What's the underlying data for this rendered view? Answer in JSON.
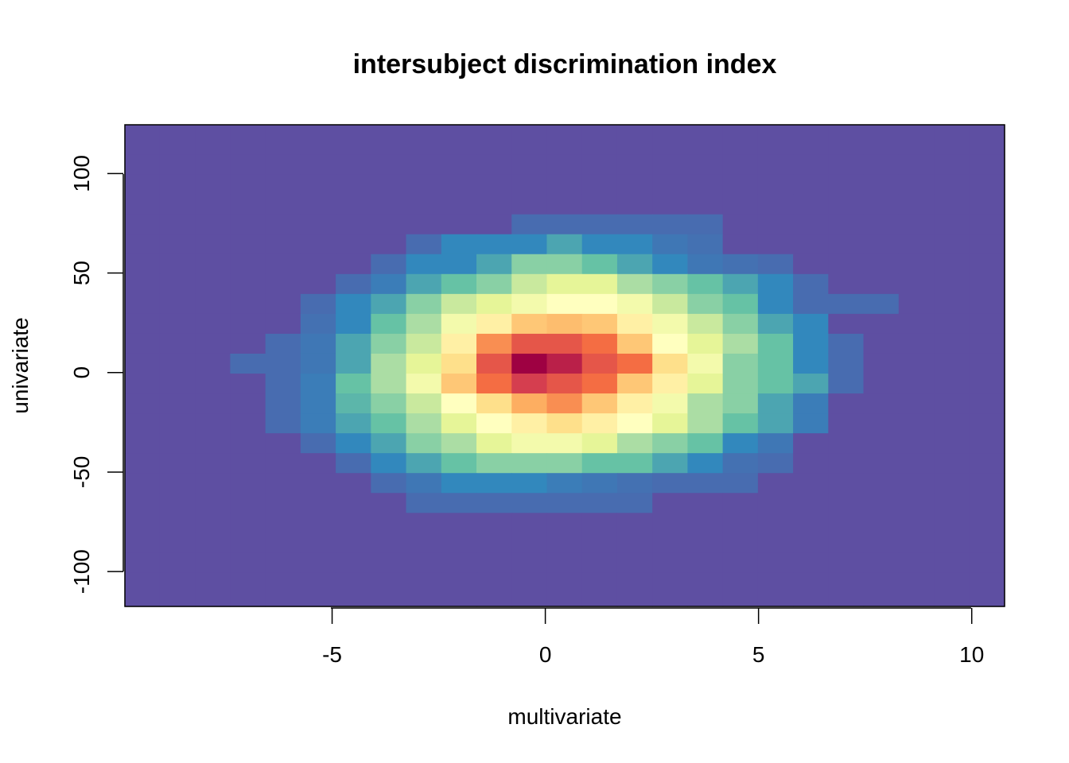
{
  "chart_data": {
    "type": "heatmap",
    "title": "intersubject discrimination index",
    "xlabel": "multivariate",
    "ylabel": "univariate",
    "xlim": [
      -9.86,
      10.77
    ],
    "ylim": [
      -117.5,
      124.5
    ],
    "xticks": [
      -5,
      0,
      5,
      10
    ],
    "xtick_labels": [
      "-5",
      "0",
      "5",
      "10"
    ],
    "yticks": [
      -100,
      -50,
      0,
      50,
      100
    ],
    "ytick_labels": [
      "-100",
      "-50",
      "0",
      "50",
      "100"
    ],
    "grid": false,
    "legend": "none",
    "x_centers": [
      -9.45,
      -8.63,
      -7.8,
      -6.98,
      -6.15,
      -5.33,
      -4.5,
      -3.68,
      -2.85,
      -2.03,
      -1.2,
      -0.38,
      0.45,
      1.27,
      2.1,
      2.92,
      3.75,
      4.57,
      5.4,
      6.22,
      7.05,
      7.87,
      8.7,
      9.52,
      10.35
    ],
    "y_centers": [
      114.5,
      104.5,
      94.5,
      84.5,
      74.5,
      64.5,
      54.5,
      44.5,
      34.5,
      24.5,
      14.5,
      4.5,
      -5.5,
      -15.5,
      -25.5,
      -35.5,
      -45.5,
      -55.5,
      -65.5,
      -75.5,
      -85.5,
      -95.5,
      -105.5
    ],
    "value_scale": "relative density 0–10 (Spectral palette, 0 = purple, 10 = dark red)",
    "colors": [
      "#5E4FA2",
      "#4E5EAA",
      "#3E6EB3",
      "#3288BD",
      "#409CB3",
      "#66C2A5",
      "#ABDDA4",
      "#E6F598",
      "#FEE08B",
      "#F46D43",
      "#9E0142"
    ],
    "palette": [
      "#5E4FA2",
      "#3288BD",
      "#66C2A5",
      "#ABDDA4",
      "#E6F598",
      "#FFFFBF",
      "#FEE08B",
      "#FDAE61",
      "#F46D43",
      "#D53E4F",
      "#9E0142"
    ],
    "z": [
      [
        0,
        0,
        0,
        0,
        0,
        0,
        0,
        0,
        0,
        0,
        0,
        0,
        0,
        0,
        0,
        0,
        0,
        0,
        0,
        0,
        0,
        0,
        0,
        0,
        0
      ],
      [
        0,
        0,
        0,
        0,
        0,
        0,
        0,
        0,
        0,
        0,
        0,
        0,
        0,
        0,
        0,
        0,
        0,
        0,
        0,
        0,
        0,
        0,
        0,
        0,
        0
      ],
      [
        0,
        0,
        0,
        0,
        0,
        0,
        0,
        0,
        0,
        0,
        0,
        0,
        0,
        0,
        0,
        0,
        0,
        0,
        0,
        0,
        0,
        0,
        0,
        0,
        0
      ],
      [
        0,
        0,
        0,
        0,
        0,
        0,
        0,
        0,
        0,
        0,
        0,
        0,
        0,
        0,
        0,
        0,
        0,
        0,
        0,
        0,
        0,
        0,
        0,
        0,
        0
      ],
      [
        0,
        0,
        0,
        0,
        0,
        0,
        0,
        0,
        0,
        0,
        0,
        0.5,
        0.5,
        0.5,
        0.5,
        0.5,
        0.5,
        0,
        0,
        0,
        0,
        0,
        0,
        0,
        0
      ],
      [
        0,
        0,
        0,
        0,
        0,
        0,
        0,
        0,
        0.5,
        1,
        1,
        1,
        1.5,
        1,
        1,
        0.7,
        0.6,
        0,
        0,
        0,
        0,
        0,
        0,
        0,
        0
      ],
      [
        0,
        0,
        0,
        0,
        0,
        0,
        0,
        0.5,
        1,
        1,
        1.5,
        2.5,
        2.5,
        2,
        1.5,
        1,
        0.7,
        0.6,
        0.5,
        0,
        0,
        0,
        0,
        0,
        0
      ],
      [
        0,
        0,
        0,
        0,
        0,
        0,
        0.5,
        0.8,
        1.5,
        2,
        2.5,
        3.5,
        4,
        4,
        3,
        2.5,
        2,
        1.5,
        1,
        0.5,
        0,
        0,
        0,
        0,
        0
      ],
      [
        0,
        0,
        0,
        0,
        0,
        0.5,
        1,
        1.5,
        2.5,
        3.5,
        4,
        4.5,
        5,
        5,
        4.5,
        3.5,
        2.5,
        2,
        1,
        0.5,
        0.5,
        0.5,
        0,
        0,
        0
      ],
      [
        0,
        0,
        0,
        0,
        0,
        0.6,
        1,
        2,
        3,
        4.5,
        5.5,
        6.5,
        6.7,
        6.5,
        5.5,
        4.5,
        3.5,
        2.5,
        1.5,
        1,
        0,
        0,
        0,
        0,
        0
      ],
      [
        0,
        0,
        0,
        0,
        0.5,
        0.7,
        1.5,
        2.5,
        3.5,
        5.5,
        7.5,
        8.5,
        8.5,
        8,
        6.5,
        5,
        4,
        3,
        2,
        1,
        0.5,
        0,
        0,
        0,
        0
      ],
      [
        0,
        0,
        0,
        0.5,
        0.5,
        0.7,
        1.5,
        3,
        4,
        6,
        8.5,
        10,
        9.5,
        8.5,
        8,
        6,
        4.5,
        2.5,
        2,
        1,
        0.5,
        0,
        0,
        0,
        0
      ],
      [
        0,
        0,
        0,
        0,
        0.5,
        0.8,
        2,
        3,
        4.5,
        6.5,
        8,
        9,
        8.5,
        8,
        6.5,
        5.5,
        4,
        2.5,
        2,
        1.5,
        0.5,
        0,
        0,
        0,
        0
      ],
      [
        0,
        0,
        0,
        0,
        0.5,
        0.8,
        1.8,
        2.5,
        3.5,
        5,
        6,
        7,
        7.5,
        6.5,
        5.5,
        4.5,
        3,
        2.5,
        1.5,
        0.8,
        0,
        0,
        0,
        0,
        0
      ],
      [
        0,
        0,
        0,
        0,
        0.5,
        0.8,
        1.5,
        2,
        3,
        4,
        5,
        5.5,
        6,
        5.5,
        5,
        4,
        3,
        2,
        1.5,
        0.8,
        0,
        0,
        0,
        0,
        0
      ],
      [
        0,
        0,
        0,
        0,
        0,
        0.5,
        1,
        1.5,
        2.5,
        3,
        4,
        4.5,
        4.5,
        4,
        3,
        2.5,
        2,
        1,
        0.7,
        0,
        0,
        0,
        0,
        0,
        0
      ],
      [
        0,
        0,
        0,
        0,
        0,
        0,
        0.5,
        1,
        1.5,
        2,
        2.5,
        2.5,
        2.5,
        2,
        2,
        1.5,
        1,
        0.6,
        0.5,
        0,
        0,
        0,
        0,
        0,
        0
      ],
      [
        0,
        0,
        0,
        0,
        0,
        0,
        0,
        0.5,
        0.7,
        1,
        1,
        1,
        0.8,
        0.7,
        0.6,
        0.5,
        0.5,
        0.5,
        0,
        0,
        0,
        0,
        0,
        0,
        0
      ],
      [
        0,
        0,
        0,
        0,
        0,
        0,
        0,
        0,
        0.5,
        0.5,
        0.5,
        0.5,
        0.5,
        0.5,
        0.5,
        0,
        0,
        0,
        0,
        0,
        0,
        0,
        0,
        0,
        0
      ],
      [
        0,
        0,
        0,
        0,
        0,
        0,
        0,
        0,
        0,
        0,
        0,
        0,
        0,
        0,
        0,
        0,
        0,
        0,
        0,
        0,
        0,
        0,
        0,
        0,
        0
      ],
      [
        0,
        0,
        0,
        0,
        0,
        0,
        0,
        0,
        0,
        0,
        0,
        0,
        0,
        0,
        0,
        0,
        0,
        0,
        0,
        0,
        0,
        0,
        0,
        0,
        0
      ],
      [
        0,
        0,
        0,
        0,
        0,
        0,
        0,
        0,
        0,
        0,
        0,
        0,
        0,
        0,
        0,
        0,
        0,
        0,
        0,
        0,
        0,
        0,
        0,
        0,
        0
      ],
      [
        0,
        0,
        0,
        0,
        0,
        0,
        0,
        0,
        0,
        0,
        0,
        0,
        0,
        0,
        0,
        0,
        0,
        0,
        0,
        0,
        0,
        0,
        0,
        0,
        0
      ]
    ]
  }
}
